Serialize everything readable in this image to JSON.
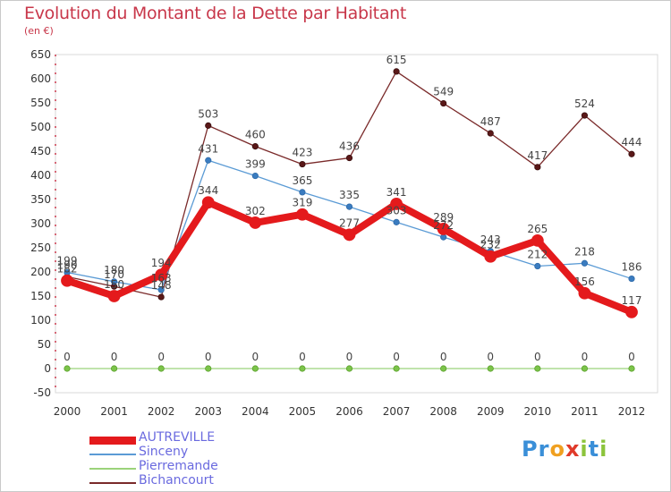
{
  "title": "Evolution du Montant de la Dette par Habitant",
  "subtitle": "(en €)",
  "logo": {
    "text": "Proxiti",
    "letters": [
      {
        "ch": "P",
        "color": "#3a8fd8"
      },
      {
        "ch": "r",
        "color": "#3a8fd8"
      },
      {
        "ch": "o",
        "color": "#f0a020"
      },
      {
        "ch": "x",
        "color": "#e03a2a"
      },
      {
        "ch": "i",
        "color": "#8cc43c"
      },
      {
        "ch": "t",
        "color": "#3a8fd8"
      },
      {
        "ch": "i",
        "color": "#8cc43c"
      }
    ]
  },
  "chart_data": {
    "type": "line",
    "title": "Evolution du Montant de la Dette par Habitant",
    "subtitle": "(en €)",
    "xlabel": "",
    "ylabel": "",
    "ylim": [
      -50,
      650
    ],
    "yticks": [
      -50,
      0,
      50,
      100,
      150,
      200,
      250,
      300,
      350,
      400,
      450,
      500,
      550,
      600,
      650
    ],
    "grid": false,
    "legend_position": "bottom-left",
    "x": [
      "2000",
      "2001",
      "2002",
      "2003",
      "2004",
      "2005",
      "2006",
      "2007",
      "2008",
      "2009",
      "2010",
      "2011",
      "2012"
    ],
    "series": [
      {
        "name": "AUTREVILLE",
        "color": "#e41a1c",
        "values": [
          182,
          150,
          194,
          344,
          302,
          319,
          277,
          341,
          289,
          232,
          265,
          156,
          117
        ],
        "labels": [
          "182",
          "150",
          "194",
          "344",
          "302",
          "319",
          "277",
          "341",
          "289",
          "232",
          "265",
          "156",
          "117"
        ]
      },
      {
        "name": "Sinceny",
        "color": "#5b9bd5",
        "values": [
          199,
          180,
          163,
          431,
          399,
          365,
          335,
          303,
          272,
          243,
          212,
          218,
          186
        ],
        "labels": [
          "199",
          "180",
          "163",
          "431",
          "399",
          "365",
          "335",
          "303",
          "272",
          "243",
          "212",
          "218",
          "186"
        ]
      },
      {
        "name": "Pierremande",
        "color": "#9bd37a",
        "values": [
          0,
          0,
          0,
          0,
          0,
          0,
          0,
          0,
          0,
          0,
          0,
          0,
          0
        ],
        "labels": [
          "0",
          "0",
          "0",
          "0",
          "0",
          "0",
          "0",
          "0",
          "0",
          "0",
          "0",
          "0",
          "0"
        ]
      },
      {
        "name": "Bichancourt",
        "color": "#7a2a2a",
        "values": [
          190,
          170,
          148,
          503,
          460,
          423,
          436,
          615,
          549,
          487,
          417,
          524,
          444
        ],
        "labels": [
          "190",
          "170",
          "148",
          "503",
          "460",
          "423",
          "436",
          "615",
          "549",
          "487",
          "417",
          "524",
          "444"
        ]
      }
    ]
  }
}
